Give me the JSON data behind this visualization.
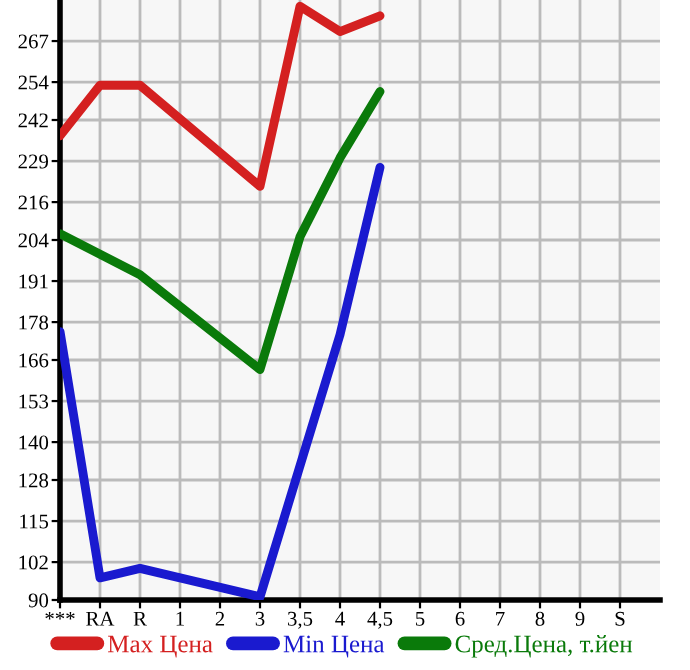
{
  "chart_data": {
    "type": "line",
    "categories": [
      "***",
      "RA",
      "R",
      "1",
      "2",
      "3",
      "3,5",
      "4",
      "4,5",
      "5",
      "6",
      "7",
      "8",
      "9",
      "S"
    ],
    "series": [
      {
        "name": "Max Цена",
        "color": "#d42020",
        "values": [
          237,
          253,
          253,
          null,
          null,
          221,
          278,
          270,
          275,
          null,
          null,
          null,
          null,
          null,
          null
        ]
      },
      {
        "name": "Min Цена",
        "color": "#1a1acf",
        "values": [
          175,
          97,
          100,
          null,
          null,
          91,
          null,
          174,
          227,
          null,
          null,
          null,
          null,
          null,
          null
        ]
      },
      {
        "name": "Сред.Цена, т.йен",
        "color": "#0a7a0a",
        "values": [
          206,
          null,
          193,
          null,
          null,
          163,
          205,
          230,
          251,
          null,
          null,
          null,
          null,
          null,
          null
        ]
      }
    ],
    "ylim": [
      90,
      280
    ],
    "yticks": [
      90,
      102,
      115,
      128,
      140,
      153,
      166,
      178,
      191,
      204,
      216,
      229,
      242,
      254,
      267
    ],
    "grid": true,
    "legend": "bottom",
    "marker": "none",
    "line_style": "solid"
  }
}
